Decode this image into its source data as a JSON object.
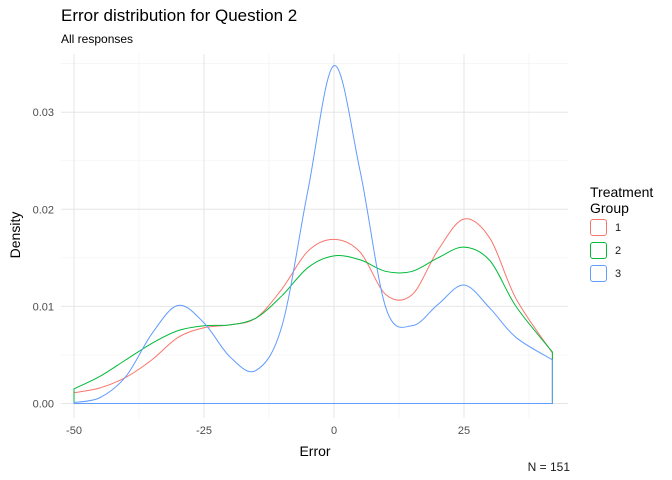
{
  "title": "Error distribution for Question 2",
  "subtitle": "All responses",
  "caption": "N = 151",
  "chart_data": {
    "type": "line",
    "title": "Error distribution for Question 2",
    "subtitle": "All responses",
    "xlabel": "Error",
    "ylabel": "Density",
    "xlim": [
      -52.5,
      45
    ],
    "ylim": [
      -0.0015,
      0.036
    ],
    "xticks": [
      -50,
      -25,
      0,
      25
    ],
    "xtick_labels": [
      "-50",
      "-25",
      "0",
      "25"
    ],
    "yticks": [
      0,
      0.01,
      0.02,
      0.03
    ],
    "ytick_labels": [
      "0.00",
      "0.01",
      "0.02",
      "0.03"
    ],
    "grid": true,
    "legend": {
      "title": "Treatment Group",
      "position": "right"
    },
    "series": [
      {
        "name": "1",
        "color": "#F8766D",
        "x": [
          -50,
          -45,
          -40,
          -35,
          -30,
          -25,
          -20,
          -15,
          -10,
          -5,
          0,
          5,
          10,
          15,
          20,
          25,
          30,
          35,
          42
        ],
        "y": [
          0.0011,
          0.0016,
          0.0027,
          0.0045,
          0.0068,
          0.0078,
          0.0081,
          0.0088,
          0.0118,
          0.0157,
          0.0169,
          0.0156,
          0.0112,
          0.0112,
          0.0158,
          0.019,
          0.017,
          0.0108,
          0.0052
        ]
      },
      {
        "name": "2",
        "color": "#00BA38",
        "x": [
          -50,
          -45,
          -40,
          -35,
          -30,
          -25,
          -20,
          -15,
          -10,
          -5,
          0,
          5,
          10,
          15,
          20,
          25,
          30,
          35,
          42
        ],
        "y": [
          0.0015,
          0.0028,
          0.0045,
          0.0062,
          0.0075,
          0.008,
          0.0081,
          0.0088,
          0.0111,
          0.014,
          0.0152,
          0.0148,
          0.0136,
          0.0136,
          0.015,
          0.0161,
          0.0147,
          0.01,
          0.0053
        ]
      },
      {
        "name": "3",
        "color": "#619CFF",
        "x": [
          -50,
          -45,
          -40,
          -35,
          -30,
          -25,
          -20,
          -15,
          -10,
          -5,
          0,
          5,
          10,
          15,
          20,
          25,
          30,
          35,
          42
        ],
        "y": [
          0.0001,
          0.0006,
          0.0028,
          0.0072,
          0.0101,
          0.0083,
          0.0048,
          0.0034,
          0.008,
          0.022,
          0.0348,
          0.024,
          0.0098,
          0.008,
          0.0102,
          0.0122,
          0.0098,
          0.0068,
          0.0045
        ]
      }
    ]
  }
}
